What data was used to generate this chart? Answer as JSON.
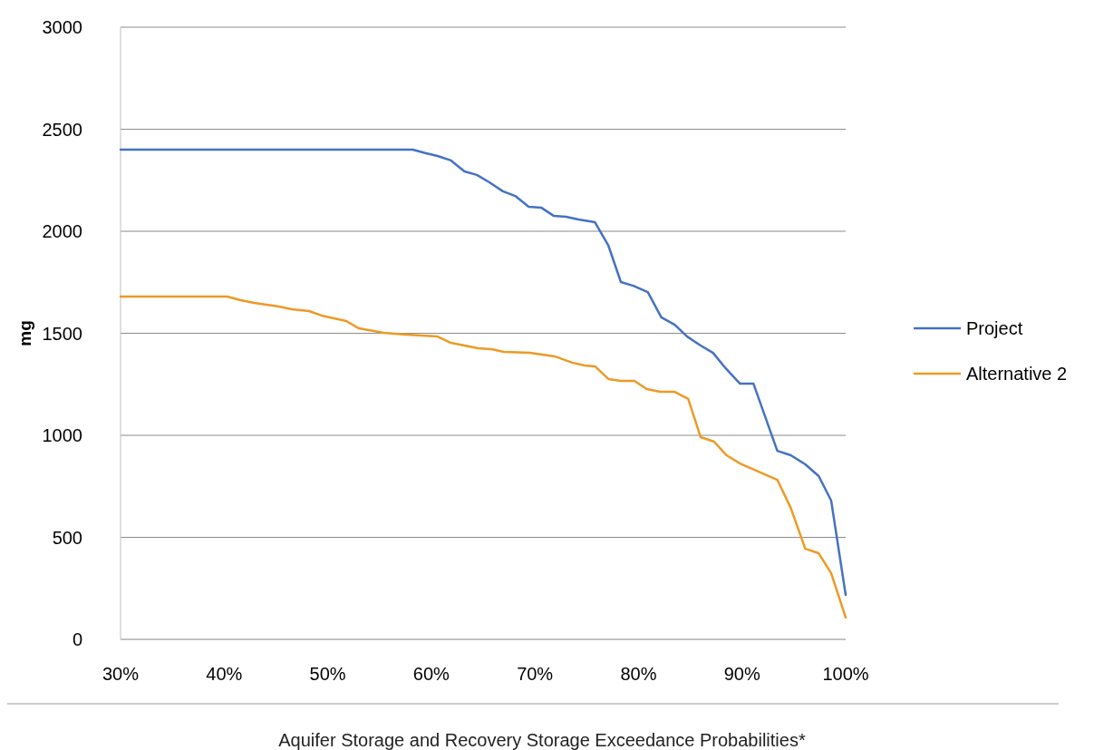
{
  "chart_data": {
    "type": "line",
    "xlabel": "Aquifer Storage and Recovery Storage Exceedance Probabilities*",
    "ylabel": "mg",
    "xlim": [
      30,
      100
    ],
    "xticks": [
      {
        "value": 30,
        "label": "30%"
      },
      {
        "value": 40,
        "label": "40%"
      },
      {
        "value": 50,
        "label": "50%"
      },
      {
        "value": 60,
        "label": "60%"
      },
      {
        "value": 70,
        "label": "70%"
      },
      {
        "value": 80,
        "label": "80%"
      },
      {
        "value": 90,
        "label": "90%"
      },
      {
        "value": 100,
        "label": "100%"
      }
    ],
    "ylim": [
      0,
      3000
    ],
    "yticks": [
      0,
      500,
      1000,
      1500,
      2000,
      2500,
      3000
    ],
    "grid": "y",
    "legend": "right",
    "marker": "none",
    "line_style": "solid",
    "series": [
      {
        "name": "Project",
        "color": "#4472c4",
        "x": [
          30,
          58.2,
          59.5,
          60.6,
          61.9,
          63.2,
          64.4,
          65.6,
          66.9,
          68.1,
          69.4,
          70.6,
          71.8,
          73,
          74.2,
          75.8,
          77.1,
          78.3,
          79.5,
          80.9,
          82.2,
          83.5,
          84.7,
          86,
          87.2,
          88.4,
          89.8,
          91.1,
          93.4,
          94.7,
          96.1,
          97.4,
          98.6,
          100
        ],
        "values": [
          2400,
          2400,
          2382,
          2369,
          2347,
          2293,
          2276,
          2240,
          2196,
          2173,
          2120,
          2116,
          2076,
          2071,
          2058,
          2044,
          1929,
          1751,
          1733,
          1702,
          1578,
          1542,
          1484,
          1440,
          1404,
          1329,
          1253,
          1253,
          924,
          902,
          858,
          800,
          680,
          218
        ]
      },
      {
        "name": "Alternative 2",
        "color": "#ed9a25",
        "x": [
          30,
          40.3,
          41.6,
          42.9,
          44.1,
          45.3,
          46.5,
          48.2,
          49.4,
          50.6,
          51.8,
          53,
          55.4,
          57.6,
          60.6,
          61.9,
          64.5,
          65.8,
          67,
          69.5,
          71.9,
          73.6,
          74.8,
          75.8,
          77.1,
          78.3,
          79.6,
          80.8,
          82.1,
          83.5,
          84.8,
          86,
          87.3,
          88.5,
          89.8,
          93.4,
          94.7,
          96.1,
          97.4,
          98.6,
          100
        ],
        "values": [
          1680,
          1680,
          1662,
          1649,
          1640,
          1631,
          1618,
          1609,
          1587,
          1573,
          1560,
          1524,
          1502,
          1493,
          1484,
          1453,
          1427,
          1422,
          1409,
          1404,
          1387,
          1356,
          1342,
          1338,
          1276,
          1267,
          1267,
          1227,
          1213,
          1213,
          1178,
          991,
          969,
          902,
          862,
          782,
          644,
          444,
          422,
          324,
          107
        ]
      }
    ]
  }
}
